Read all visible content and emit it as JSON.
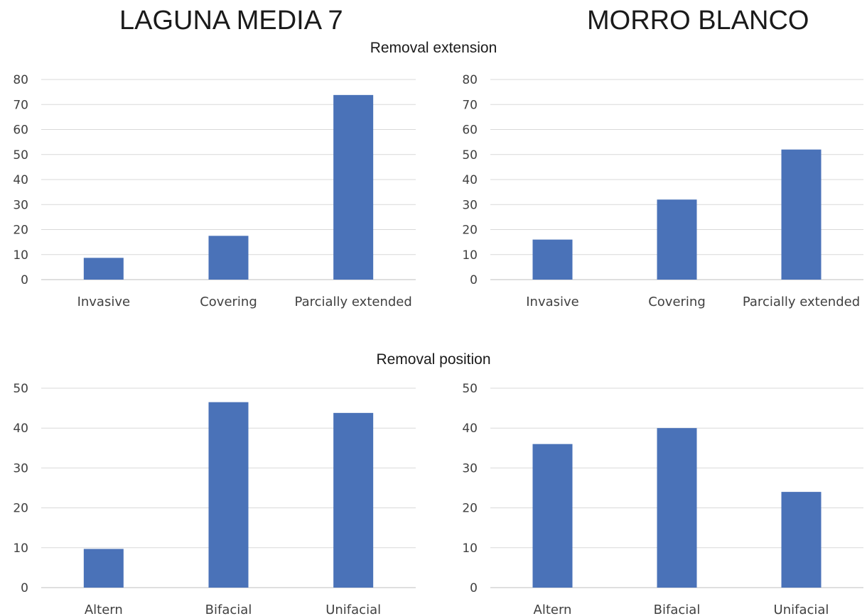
{
  "titles": {
    "left": "LAGUNA MEDIA 7",
    "right": "MORRO BLANCO",
    "top_section": "Removal extension",
    "bottom_section": "Removal position"
  },
  "colors": {
    "bar": "#4a72b8",
    "grid": "#d9d9d9",
    "axis": "#bfbfbf"
  },
  "chart_data": [
    {
      "type": "bar",
      "site": "LAGUNA MEDIA 7",
      "section": "Removal extension",
      "categories": [
        "Invasive",
        "Covering",
        "Parcially extended"
      ],
      "values": [
        8.7,
        17.5,
        73.8
      ],
      "ylim": [
        0,
        80
      ],
      "yticks": [
        0,
        10,
        20,
        30,
        40,
        50,
        60,
        70,
        80
      ],
      "grid": true,
      "legend": "none"
    },
    {
      "type": "bar",
      "site": "MORRO BLANCO",
      "section": "Removal extension",
      "categories": [
        "Invasive",
        "Covering",
        "Parcially extended"
      ],
      "values": [
        16,
        32,
        52
      ],
      "ylim": [
        0,
        80
      ],
      "yticks": [
        0,
        10,
        20,
        30,
        40,
        50,
        60,
        70,
        80
      ],
      "grid": true,
      "legend": "none"
    },
    {
      "type": "bar",
      "site": "LAGUNA MEDIA 7",
      "section": "Removal position",
      "categories": [
        "Altern",
        "Bifacial",
        "Unifacial"
      ],
      "values": [
        9.7,
        46.5,
        43.8
      ],
      "ylim": [
        0,
        50
      ],
      "yticks": [
        0,
        10,
        20,
        30,
        40,
        50
      ],
      "grid": true,
      "legend": "none"
    },
    {
      "type": "bar",
      "site": "MORRO BLANCO",
      "section": "Removal position",
      "categories": [
        "Altern",
        "Bifacial",
        "Unifacial"
      ],
      "values": [
        36,
        40,
        24
      ],
      "ylim": [
        0,
        50
      ],
      "yticks": [
        0,
        10,
        20,
        30,
        40,
        50
      ],
      "grid": true,
      "legend": "none"
    }
  ]
}
